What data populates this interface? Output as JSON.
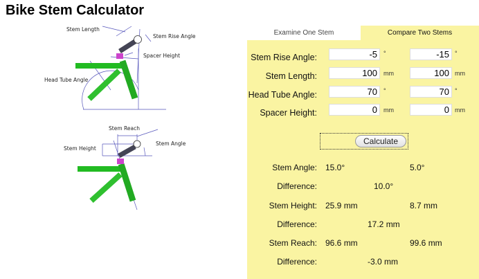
{
  "title": "Bike Stem Calculator",
  "diagram1": {
    "stem_length": "Stem Length",
    "stem_rise_angle": "Stem Rise Angle",
    "spacer_height": "Spacer Height",
    "head_tube_angle": "Head Tube Angle"
  },
  "diagram2": {
    "stem_reach": "Stem Reach",
    "stem_height": "Stem Height",
    "stem_angle": "Stem Angle"
  },
  "tabs": [
    {
      "label": "Examine One Stem",
      "active": false
    },
    {
      "label": "Compare Two Stems",
      "active": true
    }
  ],
  "form": {
    "rows": [
      {
        "label": "Stem Rise Angle:",
        "a": "-5",
        "b": "-15",
        "unit": "°"
      },
      {
        "label": "Stem Length:",
        "a": "100",
        "b": "100",
        "unit": "mm"
      },
      {
        "label": "Head Tube Angle:",
        "a": "70",
        "b": "70",
        "unit": "°"
      },
      {
        "label": "Spacer Height:",
        "a": "0",
        "b": "0",
        "unit": "mm"
      }
    ],
    "calculate_label": "Calculate"
  },
  "results": {
    "stem_angle": {
      "label": "Stem Angle:",
      "a": "15.0°",
      "b": "5.0°"
    },
    "stem_angle_diff": {
      "label": "Difference:",
      "value": "10.0°"
    },
    "stem_height": {
      "label": "Stem Height:",
      "a": "25.9 mm",
      "b": "8.7 mm"
    },
    "stem_height_diff": {
      "label": "Difference:",
      "value": "17.2 mm"
    },
    "stem_reach": {
      "label": "Stem Reach:",
      "a": "96.6 mm",
      "b": "99.6 mm"
    },
    "stem_reach_diff": {
      "label": "Difference:",
      "value": "-3.0 mm"
    }
  },
  "colors": {
    "panel": "#faf4a2",
    "frame": "#22bb22",
    "spacer": "#cc44cc",
    "dimension": "#4444bb"
  }
}
